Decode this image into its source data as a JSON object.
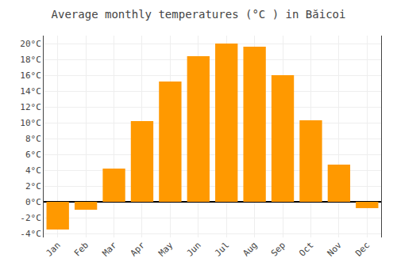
{
  "chart_data": {
    "type": "bar",
    "title": "Average monthly temperatures (°C ) in Băicoi",
    "categories": [
      "Jan",
      "Feb",
      "Mar",
      "Apr",
      "May",
      "Jun",
      "Jul",
      "Aug",
      "Sep",
      "Oct",
      "Nov",
      "Dec"
    ],
    "values": [
      -3.5,
      -1.0,
      4.2,
      10.2,
      15.2,
      18.4,
      20.0,
      19.6,
      16.0,
      10.3,
      4.7,
      -0.8
    ],
    "color": "#FF9900",
    "ylim": [
      -4.5,
      21
    ],
    "yticks": [
      {
        "value": -4,
        "label": "-4°C"
      },
      {
        "value": -2,
        "label": "-2°C"
      },
      {
        "value": 0,
        "label": "0°C"
      },
      {
        "value": 2,
        "label": "2°C"
      },
      {
        "value": 4,
        "label": "4°C"
      },
      {
        "value": 6,
        "label": "6°C"
      },
      {
        "value": 8,
        "label": "8°C"
      },
      {
        "value": 10,
        "label": "10°C"
      },
      {
        "value": 12,
        "label": "12°C"
      },
      {
        "value": 14,
        "label": "14°C"
      },
      {
        "value": 16,
        "label": "16°C"
      },
      {
        "value": 18,
        "label": "18°C"
      },
      {
        "value": 20,
        "label": "20°C"
      }
    ],
    "grid": true
  }
}
